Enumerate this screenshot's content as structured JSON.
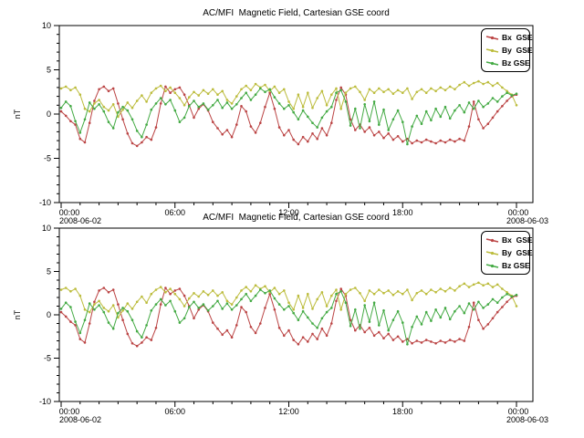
{
  "chart_data": {
    "type": "line",
    "title": "AC/MFI  Magnetic Field, Cartesian GSE coord",
    "ylabel": "nT",
    "ylim": [
      -10,
      10
    ],
    "y_major_ticks": [
      10,
      5,
      0,
      -5,
      -10
    ],
    "y_minor_step": 1,
    "x_minor_step_hours": 1,
    "x_major_ticks": [
      {
        "hour": 0,
        "label": "00:00",
        "date": "2008-06-02"
      },
      {
        "hour": 6,
        "label": "06:00",
        "date": ""
      },
      {
        "hour": 12,
        "label": "12:00",
        "date": ""
      },
      {
        "hour": 18,
        "label": "18:00",
        "date": ""
      },
      {
        "hour": 24,
        "label": "00:00",
        "date": "2008-06-03"
      }
    ],
    "panels": [
      {
        "position": "top",
        "title": "AC/MFI  Magnetic Field, Cartesian GSE coord"
      },
      {
        "position": "bottom",
        "title": "AC/MFI  Magnetic Field, Cartesian GSE coord"
      }
    ],
    "legend": {
      "position": "top-right",
      "entries": [
        {
          "label": "Bx  GSE",
          "color": "#bb4444"
        },
        {
          "label": "By  GSE",
          "color": "#bcbc3c"
        },
        {
          "label": "Bz GSE",
          "color": "#44aa44"
        }
      ]
    },
    "x_hours": [
      0,
      0.25,
      0.5,
      0.75,
      1,
      1.25,
      1.5,
      1.75,
      2,
      2.25,
      2.5,
      2.75,
      3,
      3.25,
      3.5,
      3.75,
      4,
      4.25,
      4.5,
      4.75,
      5,
      5.25,
      5.5,
      5.75,
      6,
      6.25,
      6.5,
      6.75,
      7,
      7.25,
      7.5,
      7.75,
      8,
      8.25,
      8.5,
      8.75,
      9,
      9.25,
      9.5,
      9.75,
      10,
      10.25,
      10.5,
      10.75,
      11,
      11.25,
      11.5,
      11.75,
      12,
      12.25,
      12.5,
      12.75,
      13,
      13.25,
      13.5,
      13.75,
      14,
      14.25,
      14.5,
      14.75,
      15,
      15.25,
      15.5,
      15.75,
      16,
      16.25,
      16.5,
      16.75,
      17,
      17.25,
      17.5,
      17.75,
      18,
      18.25,
      18.5,
      18.75,
      19,
      19.25,
      19.5,
      19.75,
      20,
      20.25,
      20.5,
      20.75,
      21,
      21.25,
      21.5,
      21.75,
      22,
      22.25,
      22.5,
      22.75,
      23,
      23.25,
      23.5,
      23.75,
      24
    ],
    "series": [
      {
        "name": "Bx GSE",
        "color": "#bb4444",
        "values": [
          0.3,
          -0.2,
          -0.8,
          -1.2,
          -2.8,
          -3.2,
          -1.0,
          1.5,
          2.8,
          3.1,
          2.6,
          2.9,
          1.2,
          -0.6,
          -2.2,
          -3.3,
          -3.6,
          -3.2,
          -2.6,
          -2.9,
          -1.5,
          1.2,
          3.1,
          2.4,
          2.8,
          3.0,
          2.2,
          1.0,
          -0.4,
          0.6,
          1.1,
          0.4,
          -0.9,
          -1.6,
          -2.3,
          -1.8,
          -2.6,
          -1.2,
          0.9,
          0.3,
          -1.4,
          -2.1,
          -1.0,
          0.8,
          2.4,
          0.6,
          -1.5,
          -2.4,
          -1.8,
          -2.9,
          -3.4,
          -2.6,
          -3.1,
          -2.2,
          -2.8,
          -1.6,
          -2.4,
          -1.0,
          1.6,
          3.0,
          2.2,
          -0.6,
          -1.8,
          -1.2,
          -2.0,
          -1.5,
          -2.4,
          -2.0,
          -2.7,
          -2.2,
          -2.9,
          -2.5,
          -3.1,
          -2.8,
          -3.3,
          -3.0,
          -3.2,
          -2.9,
          -3.1,
          -3.3,
          -3.0,
          -3.2,
          -2.9,
          -3.1,
          -2.8,
          -3.0,
          -1.4,
          1.4,
          -0.6,
          -1.6,
          -1.1,
          -0.4,
          0.3,
          0.9,
          1.5,
          2.0,
          2.2
        ]
      },
      {
        "name": "By GSE",
        "color": "#bcbc3c",
        "values": [
          2.9,
          3.1,
          2.7,
          3.0,
          2.2,
          0.6,
          0.3,
          1.2,
          1.6,
          0.8,
          0.4,
          1.1,
          -0.3,
          0.5,
          1.3,
          0.7,
          1.5,
          2.1,
          1.4,
          2.4,
          2.9,
          3.2,
          2.6,
          3.0,
          2.4,
          1.8,
          1.0,
          1.9,
          2.5,
          2.1,
          2.7,
          2.3,
          2.8,
          2.2,
          2.6,
          1.6,
          1.2,
          2.0,
          2.8,
          3.2,
          2.7,
          3.4,
          3.0,
          3.3,
          2.6,
          3.1,
          2.4,
          2.8,
          1.4,
          0.6,
          2.2,
          0.8,
          2.4,
          0.7,
          1.8,
          2.6,
          1.0,
          2.2,
          2.9,
          0.6,
          2.4,
          2.9,
          3.1,
          2.5,
          1.6,
          2.8,
          2.4,
          2.9,
          2.5,
          2.8,
          2.3,
          2.7,
          2.4,
          2.9,
          1.7,
          2.5,
          2.8,
          2.4,
          2.9,
          2.6,
          3.0,
          2.7,
          3.1,
          2.8,
          3.3,
          3.6,
          3.2,
          3.5,
          3.7,
          3.4,
          3.6,
          3.2,
          3.5,
          3.0,
          2.6,
          2.2,
          1.0
        ]
      },
      {
        "name": "Bz GSE",
        "color": "#44aa44",
        "values": [
          0.7,
          1.4,
          0.9,
          -0.8,
          -2.1,
          -0.6,
          1.3,
          0.6,
          1.1,
          0.3,
          -0.9,
          -1.6,
          0.2,
          0.8,
          0.4,
          -0.6,
          -1.9,
          -2.6,
          -1.2,
          0.5,
          1.2,
          1.8,
          1.1,
          1.6,
          0.4,
          -0.9,
          -0.4,
          0.9,
          1.5,
          0.8,
          1.2,
          0.5,
          1.0,
          1.6,
          0.7,
          1.3,
          0.6,
          1.1,
          1.8,
          2.4,
          1.6,
          2.2,
          2.9,
          2.5,
          2.8,
          1.9,
          1.2,
          0.6,
          1.0,
          0.2,
          -0.6,
          0.4,
          -0.3,
          -1.0,
          -1.5,
          -0.4,
          0.3,
          0.8,
          2.4,
          2.7,
          1.4,
          -1.3,
          0.6,
          -1.6,
          1.1,
          -0.8,
          1.4,
          -1.2,
          0.5,
          -1.8,
          -0.6,
          0.4,
          -0.9,
          -3.4,
          -1.4,
          -0.2,
          -1.1,
          0.3,
          -0.7,
          0.6,
          -0.3,
          0.8,
          -0.5,
          0.4,
          1.0,
          0.2,
          1.3,
          0.6,
          1.5,
          0.8,
          1.2,
          1.8,
          1.4,
          2.0,
          2.4,
          2.1,
          2.3
        ]
      }
    ]
  }
}
